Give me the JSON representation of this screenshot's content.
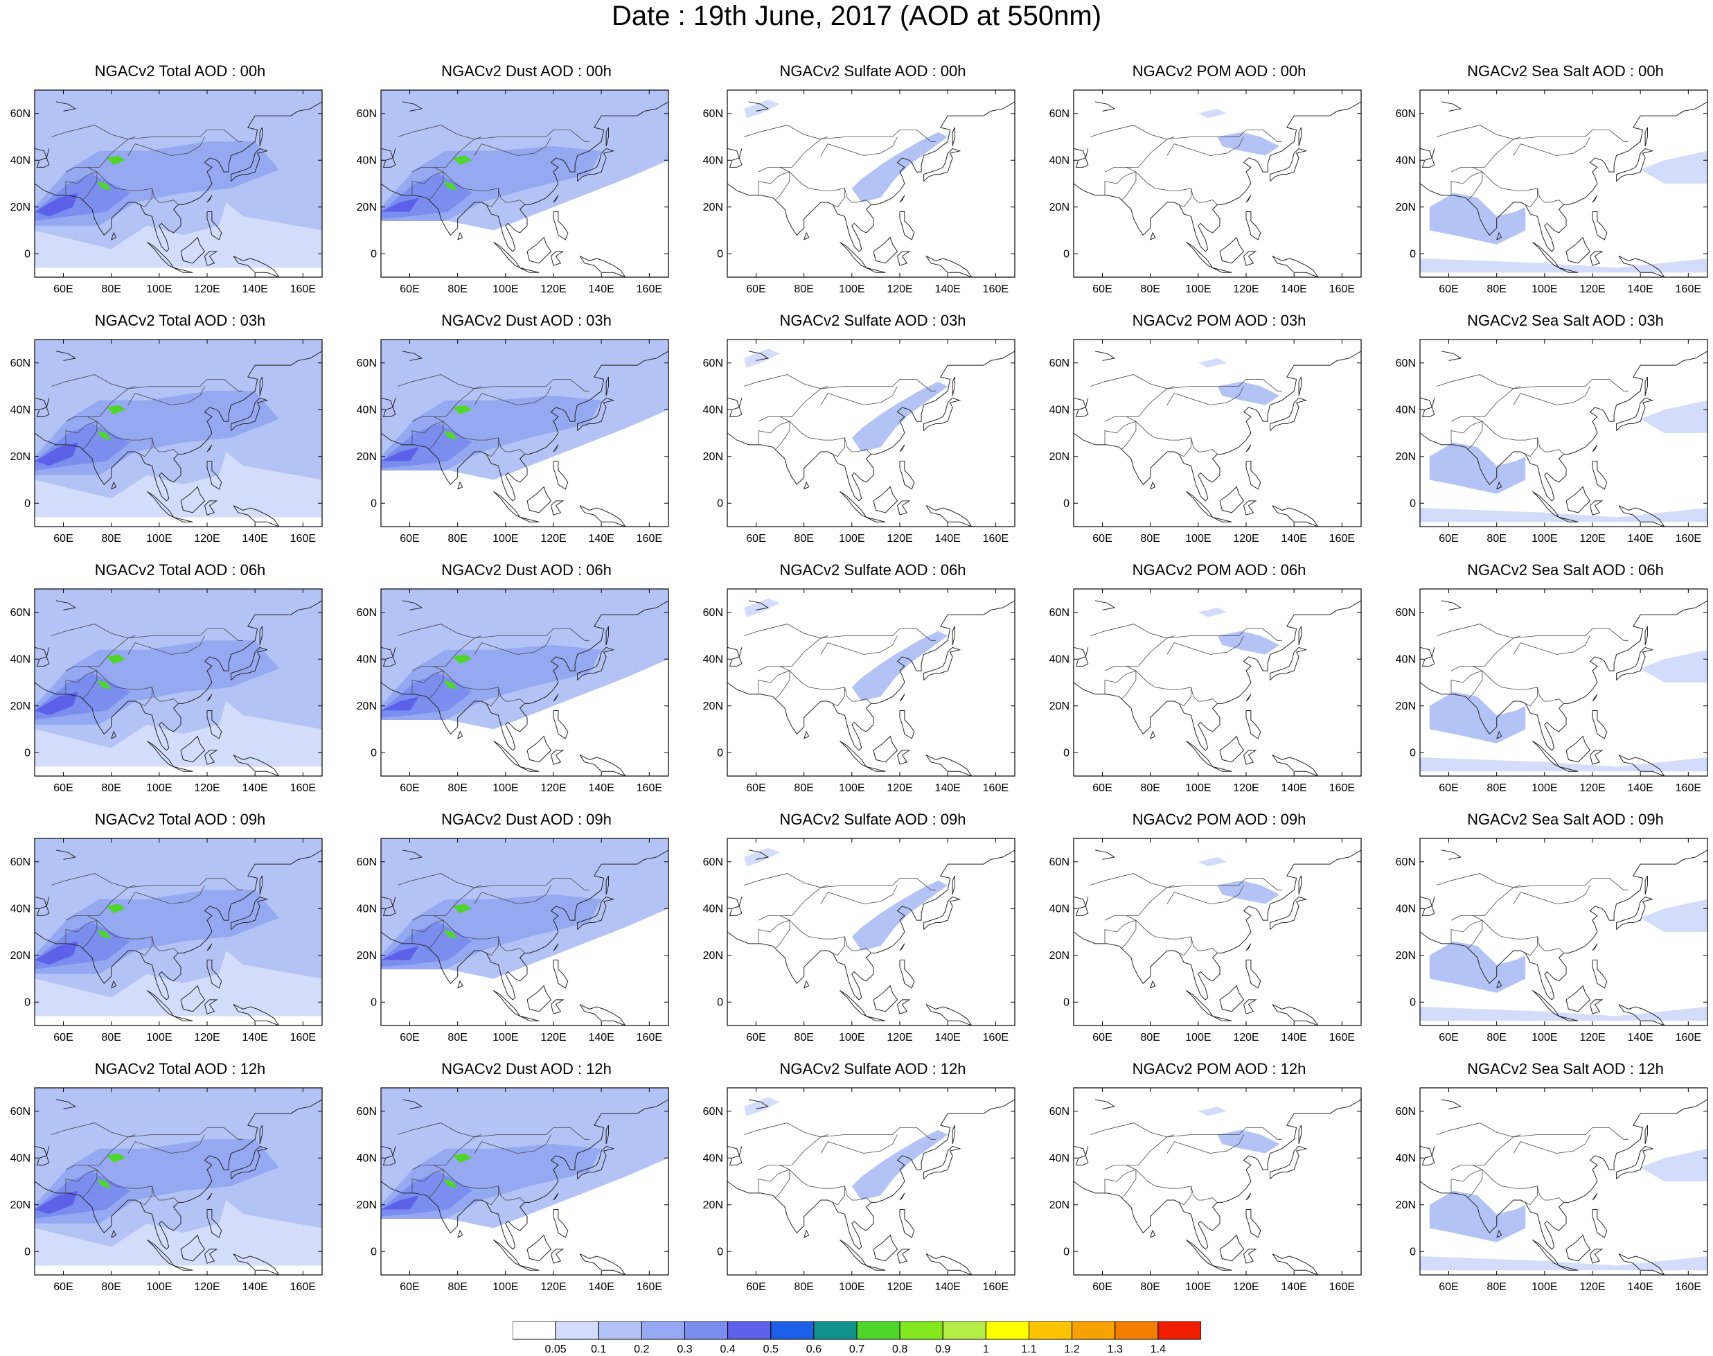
{
  "title": "Date : 19th June, 2017 (AOD at 550nm)",
  "hours": [
    "00h",
    "03h",
    "06h",
    "09h",
    "12h"
  ],
  "columns": [
    {
      "key": "total",
      "label": "Total",
      "color": "#a9b8f3"
    },
    {
      "key": "dust",
      "label": "Dust",
      "color": "#b4c2f5"
    },
    {
      "key": "sulfate",
      "label": "Sulfate",
      "color": "#b8c6f6"
    },
    {
      "key": "pom",
      "label": "POM",
      "color": "#b8c6f6"
    },
    {
      "key": "seasalt",
      "label": "Sea Salt",
      "color": "#c5d1f8"
    }
  ],
  "panel_titles": [
    [
      "NGACv2 Total AOD : 00h",
      "NGACv2 Dust AOD : 00h",
      "NGACv2 Sulfate AOD : 00h",
      "NGACv2 POM AOD : 00h",
      "NGACv2 Sea Salt AOD : 00h"
    ],
    [
      "NGACv2 Total AOD : 03h",
      "NGACv2 Dust AOD : 03h",
      "NGACv2 Sulfate AOD : 03h",
      "NGACv2 POM AOD : 03h",
      "NGACv2 Sea Salt AOD : 03h"
    ],
    [
      "NGACv2 Total AOD : 06h",
      "NGACv2 Dust AOD : 06h",
      "NGACv2 Sulfate AOD : 06h",
      "NGACv2 POM AOD : 06h",
      "NGACv2 Sea Salt AOD : 06h"
    ],
    [
      "NGACv2 Total AOD : 09h",
      "NGACv2 Dust AOD : 09h",
      "NGACv2 Sulfate AOD : 09h",
      "NGACv2 POM AOD : 09h",
      "NGACv2 Sea Salt  AOD : 09h"
    ],
    [
      "NGACv2 Total AOD  : 12h",
      "NGACv2 Dust AOD : 12h",
      "NGACv2 Sulfate AOD : 12h",
      "NGACv2 POM  AOD : 12h",
      "NGACv2 Sea Salt  AOD : 12h"
    ]
  ],
  "map": {
    "lon_ticks": [
      "60E",
      "80E",
      "100E",
      "120E",
      "140E",
      "160E"
    ],
    "lon_tick_values": [
      60,
      80,
      100,
      120,
      140,
      160
    ],
    "lat_ticks": [
      "0",
      "20N",
      "40N",
      "60N"
    ],
    "lat_tick_values": [
      0,
      20,
      40,
      60
    ],
    "lon_range": [
      48,
      168
    ],
    "lat_range": [
      -10,
      70
    ]
  },
  "colorbar": {
    "levels": [
      "0.05",
      "0.1",
      "0.2",
      "0.3",
      "0.4",
      "0.5",
      "0.6",
      "0.7",
      "0.8",
      "0.9",
      "1",
      "1.1",
      "1.2",
      "1.3",
      "1.4"
    ],
    "colors": [
      "#ffffff",
      "#d3dcfa",
      "#b3c3f5",
      "#95a8f1",
      "#7b8ef0",
      "#5d60e8",
      "#1e5fe8",
      "#10928a",
      "#4fd62a",
      "#84e81e",
      "#b5ec45",
      "#ffff00",
      "#fcc400",
      "#f7a200",
      "#f37e00",
      "#f01e00"
    ]
  }
}
